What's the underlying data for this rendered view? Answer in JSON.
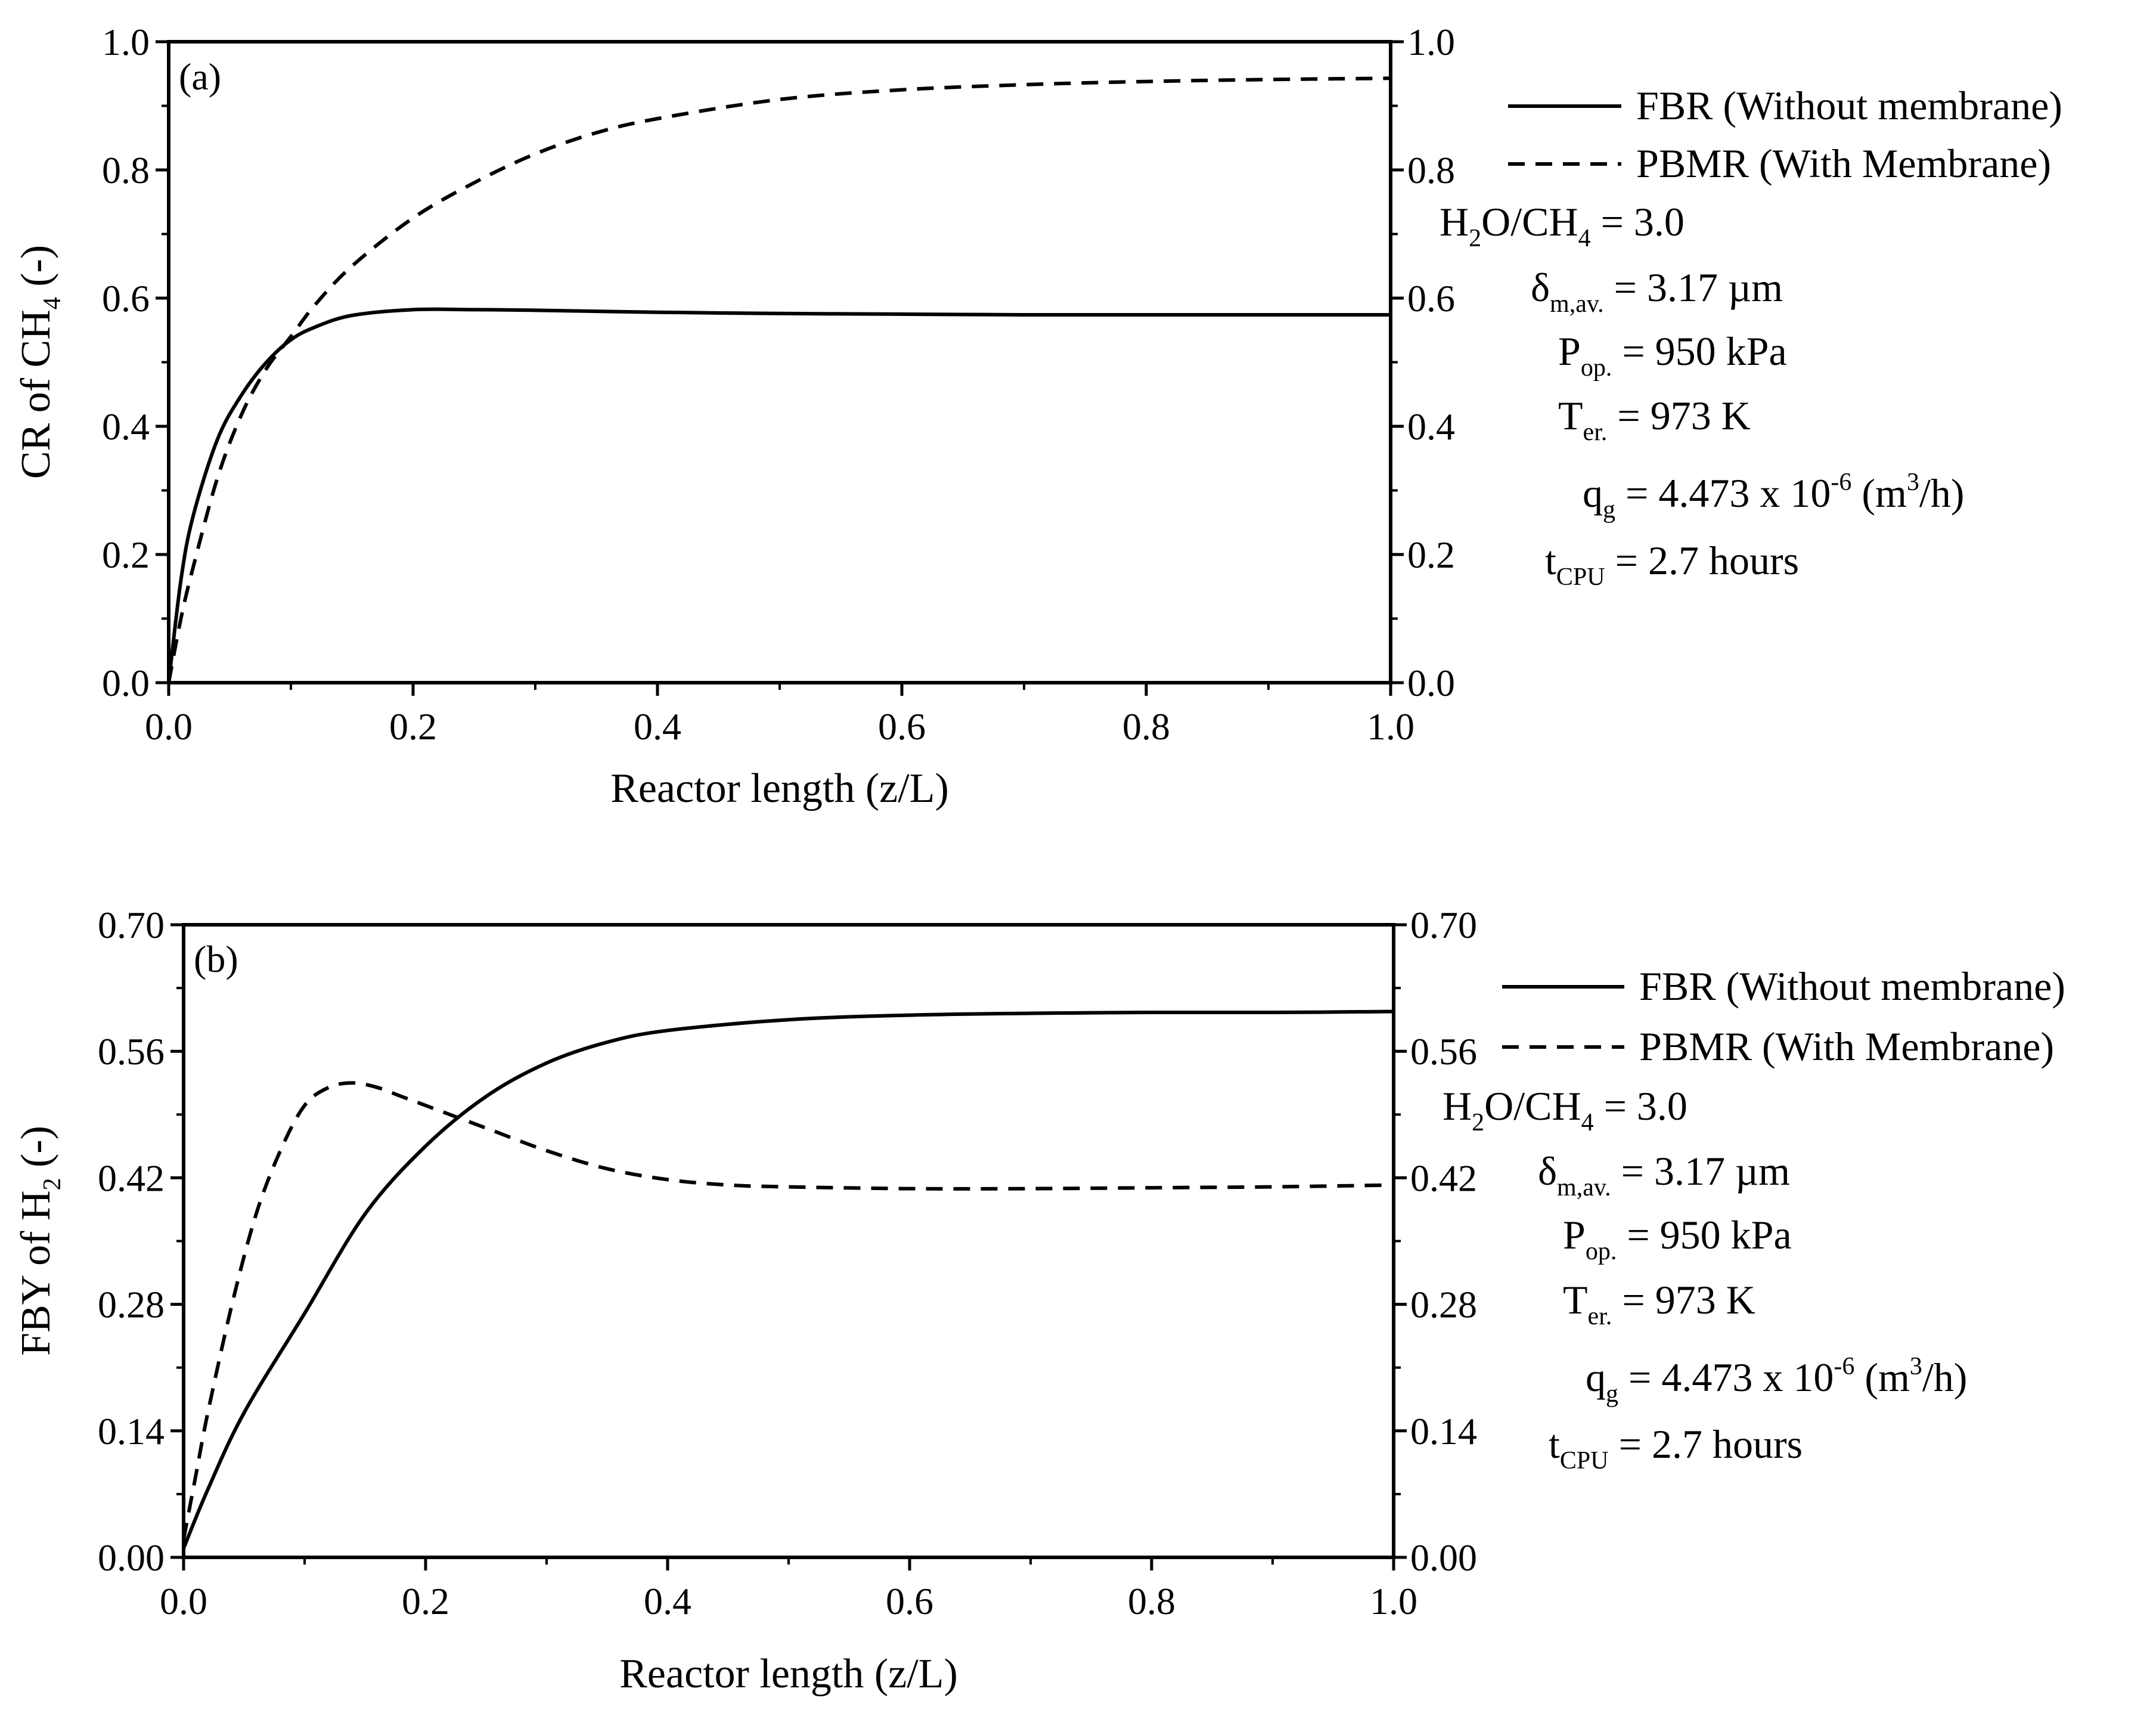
{
  "figure": {
    "legend": {
      "fbr_label": "FBR (Without membrane)",
      "pbmr_label": "PBMR (With Membrane)"
    },
    "parameters": {
      "ratio": {
        "h": "H",
        "two": "2",
        "o_ch": "O/CH",
        "four": "4",
        "value": " = 3.0"
      },
      "delta": {
        "symbol": "δ",
        "sub": "m,av.",
        "value": " = 3.17 µm"
      },
      "pressure": {
        "symbol": "P",
        "sub": "op.",
        "value": " = 950 kPa"
      },
      "temperature": {
        "symbol": "T",
        "sub": "er.",
        "value": " = 973 K"
      },
      "flow": {
        "symbol": "q",
        "sub": "g",
        "value_a": " = 4.473 x 10",
        "exp": "-6",
        "value_b": " (m",
        "cube": "3",
        "value_c": "/h)"
      },
      "cpu": {
        "symbol": "t",
        "sub": "CPU",
        "value": " = 2.7 hours"
      }
    }
  },
  "chart_data": [
    {
      "type": "line",
      "panel_label": "(a)",
      "xlabel": "Reactor length (z/L)",
      "ylabel": {
        "prefix": "CR of CH",
        "sub": "4",
        "suffix": " (-)"
      },
      "xlim": [
        0,
        1.0
      ],
      "ylim": [
        0,
        1.0
      ],
      "x_ticks": [
        "0.0",
        "0.2",
        "0.4",
        "0.6",
        "0.8",
        "1.0"
      ],
      "y_ticks": [
        "0.0",
        "0.2",
        "0.4",
        "0.6",
        "0.8",
        "1.0"
      ],
      "series": [
        {
          "name": "FBR (Without membrane)",
          "style": "solid",
          "x": [
            0,
            0.01,
            0.02,
            0.04,
            0.06,
            0.08,
            0.1,
            0.12,
            0.15,
            0.2,
            0.25,
            0.3,
            0.4,
            0.5,
            0.6,
            0.7,
            0.8,
            0.9,
            1.0
          ],
          "y": [
            0,
            0.16,
            0.26,
            0.38,
            0.45,
            0.5,
            0.535,
            0.555,
            0.573,
            0.582,
            0.582,
            0.581,
            0.578,
            0.576,
            0.575,
            0.574,
            0.574,
            0.574,
            0.574
          ]
        },
        {
          "name": "PBMR (With Membrane)",
          "style": "dashed",
          "x": [
            0,
            0.01,
            0.02,
            0.04,
            0.06,
            0.08,
            0.1,
            0.12,
            0.15,
            0.2,
            0.25,
            0.3,
            0.35,
            0.4,
            0.5,
            0.6,
            0.7,
            0.8,
            0.9,
            1.0
          ],
          "y": [
            0,
            0.1,
            0.18,
            0.32,
            0.42,
            0.49,
            0.54,
            0.59,
            0.65,
            0.725,
            0.78,
            0.825,
            0.858,
            0.88,
            0.91,
            0.925,
            0.933,
            0.938,
            0.941,
            0.943
          ]
        }
      ]
    },
    {
      "type": "line",
      "panel_label": "(b)",
      "xlabel": "Reactor length (z/L)",
      "ylabel": {
        "prefix": "FBY of H",
        "sub": "2",
        "suffix": " (-)"
      },
      "xlim": [
        0,
        1.0
      ],
      "ylim": [
        0,
        0.7
      ],
      "x_ticks": [
        "0.0",
        "0.2",
        "0.4",
        "0.6",
        "0.8",
        "1.0"
      ],
      "y_ticks": [
        "0.00",
        "0.14",
        "0.28",
        "0.42",
        "0.56",
        "0.70"
      ],
      "series": [
        {
          "name": "FBR (Without membrane)",
          "style": "solid",
          "x": [
            0,
            0.02,
            0.05,
            0.1,
            0.15,
            0.2,
            0.25,
            0.3,
            0.35,
            0.4,
            0.5,
            0.6,
            0.7,
            0.8,
            0.9,
            1.0
          ],
          "y": [
            0.01,
            0.075,
            0.16,
            0.27,
            0.38,
            0.455,
            0.51,
            0.547,
            0.57,
            0.583,
            0.595,
            0.6,
            0.602,
            0.603,
            0.603,
            0.604
          ]
        },
        {
          "name": "PBMR (With Membrane)",
          "style": "dashed",
          "x": [
            0,
            0.01,
            0.02,
            0.04,
            0.06,
            0.08,
            0.1,
            0.12,
            0.14,
            0.16,
            0.18,
            0.2,
            0.25,
            0.3,
            0.35,
            0.4,
            0.45,
            0.5,
            0.6,
            0.7,
            0.8,
            0.9,
            1.0
          ],
          "y": [
            0.02,
            0.09,
            0.16,
            0.28,
            0.38,
            0.45,
            0.5,
            0.52,
            0.525,
            0.52,
            0.51,
            0.5,
            0.475,
            0.45,
            0.43,
            0.418,
            0.412,
            0.41,
            0.408,
            0.408,
            0.409,
            0.41,
            0.412
          ]
        }
      ]
    }
  ]
}
